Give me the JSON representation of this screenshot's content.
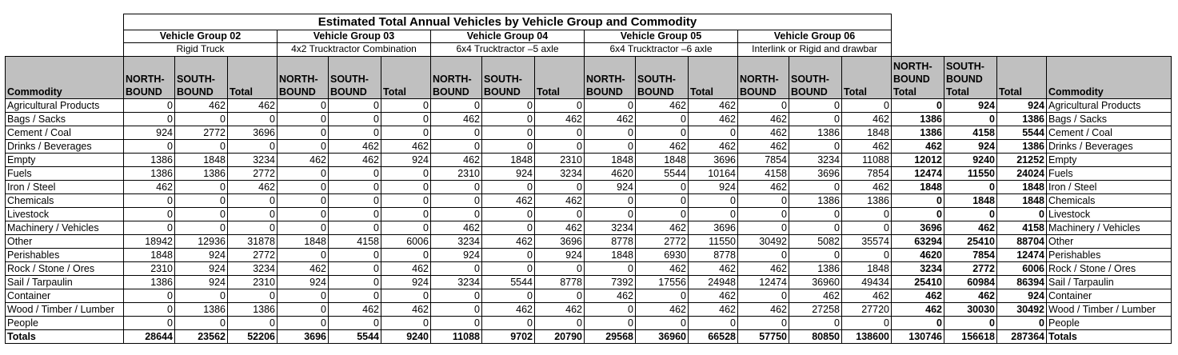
{
  "title": "Estimated Total Annual Vehicles by Vehicle Group and Commodity",
  "groups": [
    {
      "name": "Vehicle Group 02",
      "desc": "Rigid Truck"
    },
    {
      "name": "Vehicle Group 03",
      "desc": "4x2 Trucktractor Combination"
    },
    {
      "name": "Vehicle Group 04",
      "desc": "6x4 Trucktractor –5 axle"
    },
    {
      "name": "Vehicle Group 05",
      "desc": "6x4 Trucktractor –6 axle"
    },
    {
      "name": "Vehicle Group 06",
      "desc": "Interlink or Rigid and drawbar"
    }
  ],
  "headers": {
    "commodity": "Commodity",
    "northbound": "NORTH-BOUND",
    "southbound": "SOUTH-BOUND",
    "total": "Total",
    "northbound_total": "NORTH-BOUND Total",
    "southbound_total": "SOUTH-BOUND Total",
    "grand_total": "Total",
    "commodity_right": "Commodity"
  },
  "rows": [
    {
      "label": "Agricultural Products",
      "v": [
        "0",
        "462",
        "462",
        "0",
        "0",
        "0",
        "0",
        "0",
        "0",
        "0",
        "462",
        "462",
        "0",
        "0",
        "0",
        "0",
        "924",
        "924"
      ]
    },
    {
      "label": "Bags / Sacks",
      "v": [
        "0",
        "0",
        "0",
        "0",
        "0",
        "0",
        "462",
        "0",
        "462",
        "462",
        "0",
        "462",
        "462",
        "0",
        "462",
        "1386",
        "0",
        "1386"
      ]
    },
    {
      "label": "Cement / Coal",
      "v": [
        "924",
        "2772",
        "3696",
        "0",
        "0",
        "0",
        "0",
        "0",
        "0",
        "0",
        "0",
        "0",
        "462",
        "1386",
        "1848",
        "1386",
        "4158",
        "5544"
      ]
    },
    {
      "label": "Drinks / Beverages",
      "v": [
        "0",
        "0",
        "0",
        "0",
        "462",
        "462",
        "0",
        "0",
        "0",
        "0",
        "462",
        "462",
        "462",
        "0",
        "462",
        "462",
        "924",
        "1386"
      ]
    },
    {
      "label": "Empty",
      "v": [
        "1386",
        "1848",
        "3234",
        "462",
        "462",
        "924",
        "462",
        "1848",
        "2310",
        "1848",
        "1848",
        "3696",
        "7854",
        "3234",
        "11088",
        "12012",
        "9240",
        "21252"
      ]
    },
    {
      "label": "Fuels",
      "v": [
        "1386",
        "1386",
        "2772",
        "0",
        "0",
        "0",
        "2310",
        "924",
        "3234",
        "4620",
        "5544",
        "10164",
        "4158",
        "3696",
        "7854",
        "12474",
        "11550",
        "24024"
      ]
    },
    {
      "label": "Iron / Steel",
      "v": [
        "462",
        "0",
        "462",
        "0",
        "0",
        "0",
        "0",
        "0",
        "0",
        "924",
        "0",
        "924",
        "462",
        "0",
        "462",
        "1848",
        "0",
        "1848"
      ]
    },
    {
      "label": "Chemicals",
      "v": [
        "0",
        "0",
        "0",
        "0",
        "0",
        "0",
        "0",
        "462",
        "462",
        "0",
        "0",
        "0",
        "0",
        "1386",
        "1386",
        "0",
        "1848",
        "1848"
      ]
    },
    {
      "label": "Livestock",
      "v": [
        "0",
        "0",
        "0",
        "0",
        "0",
        "0",
        "0",
        "0",
        "0",
        "0",
        "0",
        "0",
        "0",
        "0",
        "0",
        "0",
        "0",
        "0"
      ]
    },
    {
      "label": "Machinery / Vehicles",
      "v": [
        "0",
        "0",
        "0",
        "0",
        "0",
        "0",
        "462",
        "0",
        "462",
        "3234",
        "462",
        "3696",
        "0",
        "0",
        "0",
        "3696",
        "462",
        "4158"
      ]
    },
    {
      "label": "Other",
      "v": [
        "18942",
        "12936",
        "31878",
        "1848",
        "4158",
        "6006",
        "3234",
        "462",
        "3696",
        "8778",
        "2772",
        "11550",
        "30492",
        "5082",
        "35574",
        "63294",
        "25410",
        "88704"
      ]
    },
    {
      "label": "Perishables",
      "v": [
        "1848",
        "924",
        "2772",
        "0",
        "0",
        "0",
        "924",
        "0",
        "924",
        "1848",
        "6930",
        "8778",
        "0",
        "0",
        "0",
        "4620",
        "7854",
        "12474"
      ]
    },
    {
      "label": "Rock / Stone / Ores",
      "v": [
        "2310",
        "924",
        "3234",
        "462",
        "0",
        "462",
        "0",
        "0",
        "0",
        "0",
        "462",
        "462",
        "462",
        "1386",
        "1848",
        "3234",
        "2772",
        "6006"
      ]
    },
    {
      "label": "Sail / Tarpaulin",
      "v": [
        "1386",
        "924",
        "2310",
        "924",
        "0",
        "924",
        "3234",
        "5544",
        "8778",
        "7392",
        "17556",
        "24948",
        "12474",
        "36960",
        "49434",
        "25410",
        "60984",
        "86394"
      ]
    },
    {
      "label": "Container",
      "v": [
        "0",
        "0",
        "0",
        "0",
        "0",
        "0",
        "0",
        "0",
        "0",
        "462",
        "0",
        "462",
        "0",
        "462",
        "462",
        "462",
        "462",
        "924"
      ]
    },
    {
      "label": "Wood / Timber / Lumber",
      "v": [
        "0",
        "1386",
        "1386",
        "0",
        "462",
        "462",
        "0",
        "462",
        "462",
        "0",
        "462",
        "462",
        "462",
        "27258",
        "27720",
        "462",
        "30030",
        "30492"
      ]
    },
    {
      "label": "People",
      "v": [
        "0",
        "0",
        "0",
        "0",
        "0",
        "0",
        "0",
        "0",
        "0",
        "0",
        "0",
        "0",
        "0",
        "0",
        "0",
        "0",
        "0",
        "0"
      ]
    }
  ],
  "totals": {
    "label": "Totals",
    "v": [
      "28644",
      "23562",
      "52206",
      "3696",
      "5544",
      "9240",
      "11088",
      "9702",
      "20790",
      "29568",
      "36960",
      "66528",
      "57750",
      "80850",
      "138600",
      "130746",
      "156618",
      "287364"
    ]
  }
}
